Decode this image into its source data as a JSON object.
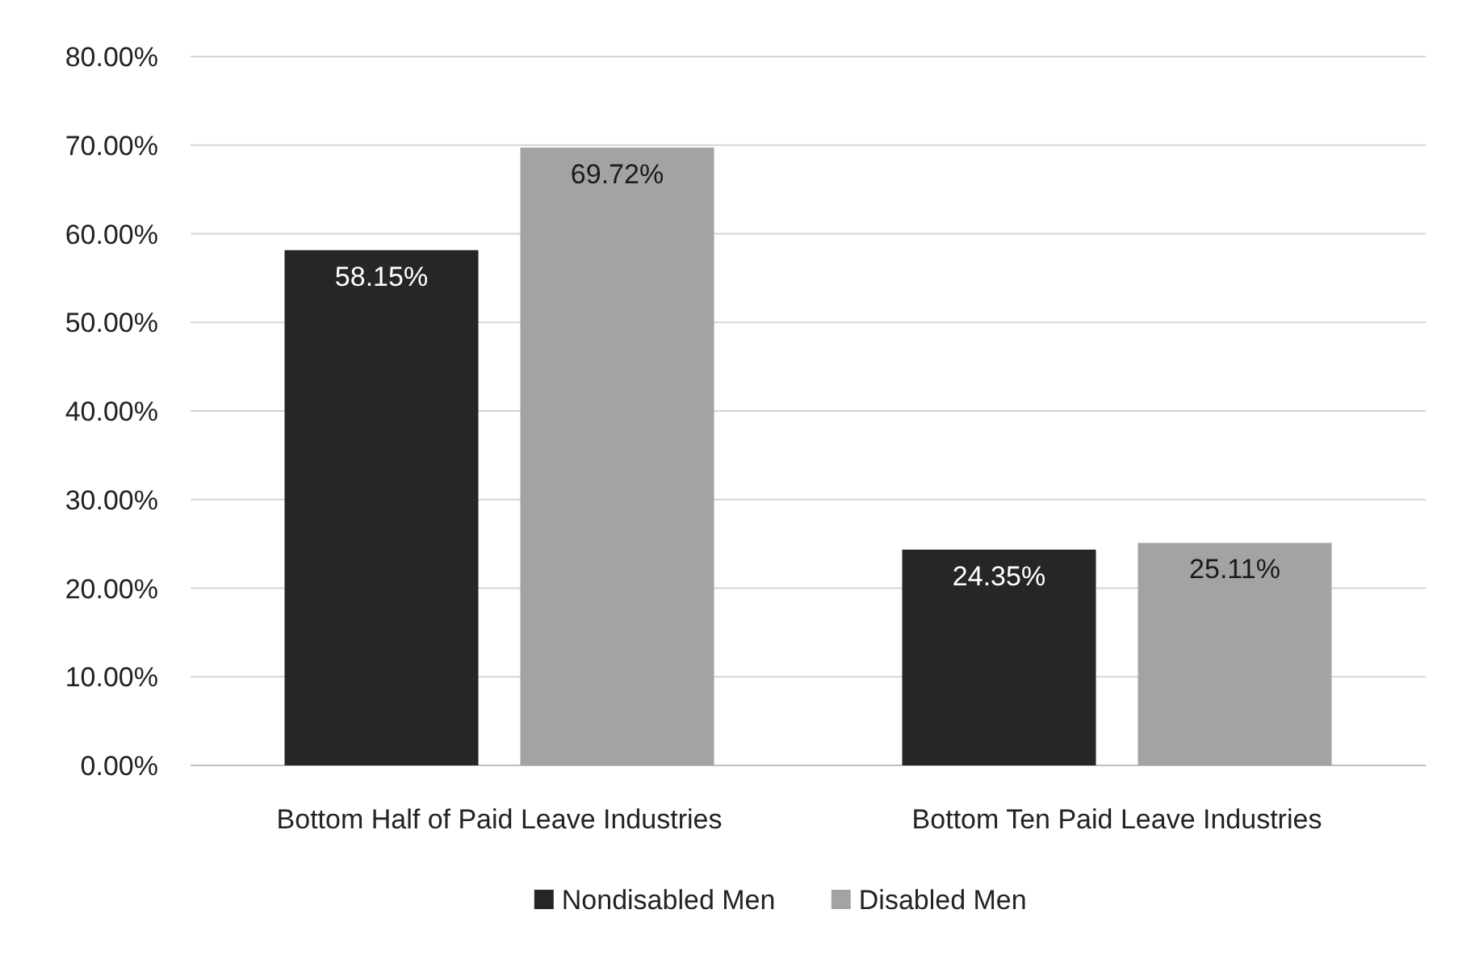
{
  "chart_data": {
    "type": "bar",
    "categories": [
      "Bottom Half of Paid Leave Industries",
      "Bottom Ten Paid Leave Industries"
    ],
    "series": [
      {
        "name": "Nondisabled Men",
        "color": "#262626",
        "values": [
          58.15,
          24.35
        ],
        "value_labels": [
          "58.15%",
          "24.35%"
        ]
      },
      {
        "name": "Disabled Men",
        "color": "#a3a3a3",
        "values": [
          69.72,
          25.11
        ],
        "value_labels": [
          "69.72%",
          "25.11%"
        ]
      }
    ],
    "ylim": [
      0,
      80
    ],
    "yticks": [
      {
        "value": 0,
        "label": "0.00%"
      },
      {
        "value": 10,
        "label": "10.00%"
      },
      {
        "value": 20,
        "label": "20.00%"
      },
      {
        "value": 30,
        "label": "30.00%"
      },
      {
        "value": 40,
        "label": "40.00%"
      },
      {
        "value": 50,
        "label": "50.00%"
      },
      {
        "value": 60,
        "label": "60.00%"
      },
      {
        "value": 70,
        "label": "70.00%"
      },
      {
        "value": 80,
        "label": "80.00%"
      }
    ],
    "grid": "y",
    "legend": "bottom"
  }
}
